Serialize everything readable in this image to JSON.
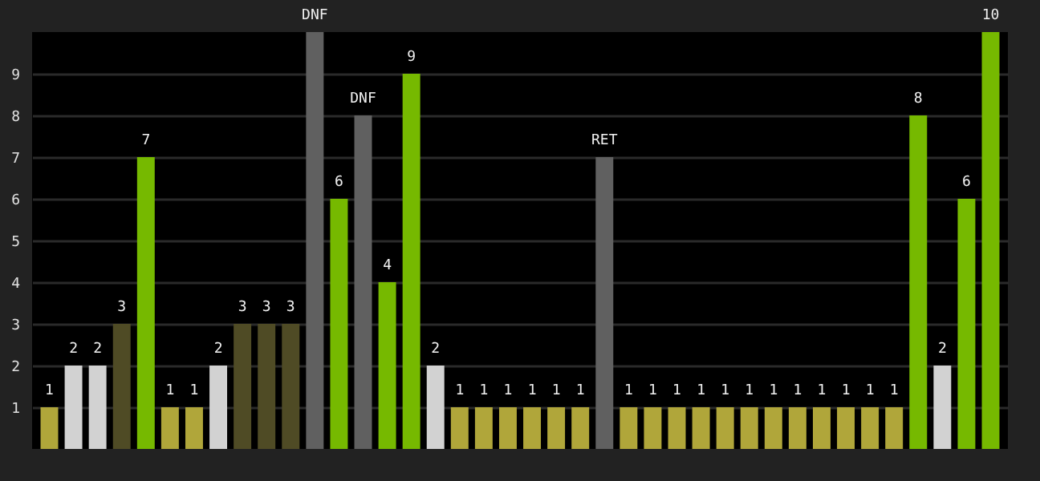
{
  "chart_data": {
    "type": "bar",
    "categories": [
      null,
      null,
      null,
      null,
      null,
      null,
      null,
      null,
      null,
      null,
      null,
      null,
      null,
      null,
      null,
      null,
      null,
      null,
      null,
      null,
      null,
      null,
      null,
      null,
      null,
      null,
      null,
      null,
      null,
      null,
      null,
      null,
      null,
      null,
      null,
      null,
      null,
      null,
      null,
      null
    ],
    "values": [
      1,
      2,
      2,
      3,
      7,
      1,
      1,
      2,
      3,
      3,
      3,
      10,
      6,
      8,
      4,
      9,
      2,
      1,
      1,
      1,
      1,
      1,
      1,
      7,
      1,
      1,
      1,
      1,
      1,
      1,
      1,
      1,
      1,
      1,
      1,
      1,
      8,
      2,
      6,
      10
    ],
    "colors": [
      "#b0a63a",
      "#d2d2d2",
      "#d2d2d2",
      "#4f4b25",
      "#76b900",
      "#b0a63a",
      "#b0a63a",
      "#d2d2d2",
      "#4f4b25",
      "#4f4b25",
      "#4f4b25",
      "#606060",
      "#76b900",
      "#606060",
      "#76b900",
      "#76b900",
      "#d2d2d2",
      "#b0a63a",
      "#b0a63a",
      "#b0a63a",
      "#b0a63a",
      "#b0a63a",
      "#b0a63a",
      "#606060",
      "#b0a63a",
      "#b0a63a",
      "#b0a63a",
      "#b0a63a",
      "#b0a63a",
      "#b0a63a",
      "#b0a63a",
      "#b0a63a",
      "#b0a63a",
      "#b0a63a",
      "#b0a63a",
      "#b0a63a",
      "#76b900",
      "#d2d2d2",
      "#76b900",
      "#76b900"
    ],
    "value_labels": [
      "1",
      "2",
      "2",
      "3",
      "7",
      "1",
      "1",
      "2",
      "3",
      "3",
      "3",
      "DNF",
      "6",
      "DNF",
      "4",
      "9",
      "2",
      "1",
      "1",
      "1",
      "1",
      "1",
      "1",
      "RET",
      "1",
      "1",
      "1",
      "1",
      "1",
      "1",
      "1",
      "1",
      "1",
      "1",
      "1",
      "1",
      "8",
      "2",
      "6",
      "10"
    ],
    "ylim": [
      0,
      10
    ],
    "yticks": [
      1,
      2,
      3,
      4,
      5,
      6,
      7,
      8,
      9
    ],
    "grid": "y",
    "tick_labels": "y"
  }
}
